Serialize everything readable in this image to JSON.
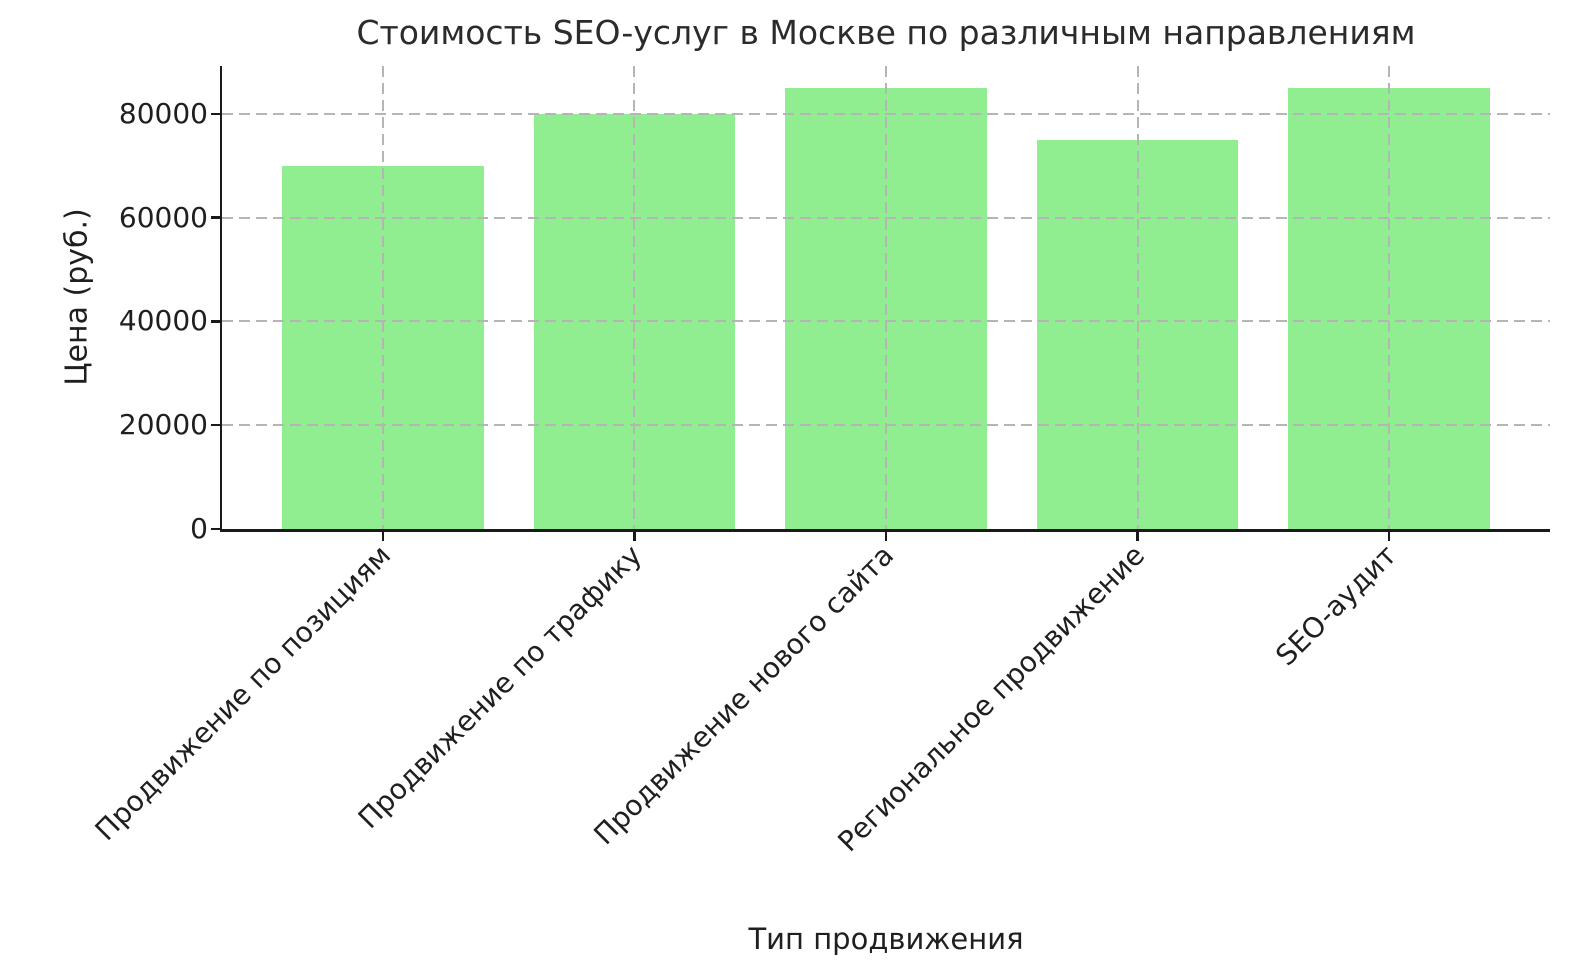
{
  "chart_data": {
    "type": "bar",
    "title": "Стоимость SEO-услуг в Москве по различным направлениям",
    "xlabel": "Тип продвижения",
    "ylabel": "Цена (руб.)",
    "categories": [
      "Продвижение по позициям",
      "Продвижение по трафику",
      "Продвижение нового сайта",
      "Региональное продвижение",
      "SEO-аудит"
    ],
    "values": [
      70000,
      80000,
      85000,
      75000,
      85000
    ],
    "yticks": [
      0,
      20000,
      40000,
      60000,
      80000
    ],
    "ylim": [
      0,
      89250
    ],
    "bar_color": "#90ee90",
    "bar_width_fraction": 0.8,
    "xtick_rotation_deg": 45,
    "grid": true,
    "grid_style": "dashed",
    "grid_color": "#b5b5b5",
    "axis_color": "#1a1a1a",
    "text_color": "#1f1f1f",
    "background": "#ffffff",
    "legend": null
  }
}
